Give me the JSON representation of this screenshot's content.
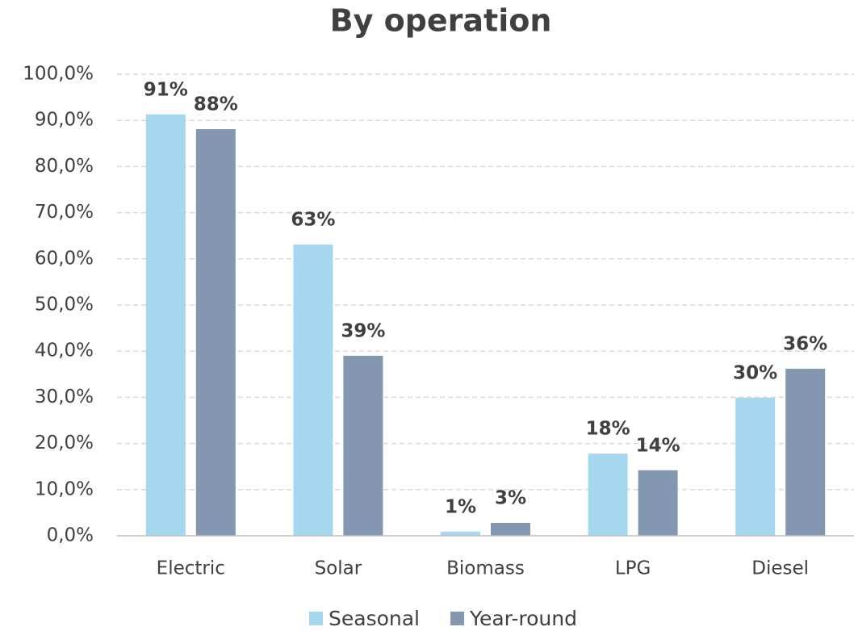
{
  "chart_data": {
    "type": "bar",
    "title": "By operation",
    "categories": [
      "Electric",
      "Solar",
      "Biomass",
      "LPG",
      "Diesel"
    ],
    "series": [
      {
        "name": "Seasonal",
        "color": "#a5d8ee",
        "values": [
          91.3,
          63.1,
          0.9,
          17.8,
          29.9
        ],
        "value_labels": [
          "91%",
          "63%",
          "1%",
          "18%",
          "30%"
        ]
      },
      {
        "name": "Year-round",
        "color": "#8497b0",
        "values": [
          88.1,
          39.0,
          2.8,
          14.2,
          36.2
        ],
        "value_labels": [
          "88%",
          "39%",
          "3%",
          "14%",
          "36%"
        ]
      }
    ],
    "ylim": [
      0,
      100
    ],
    "yticks": [
      {
        "value": 0,
        "label": "0,0%"
      },
      {
        "value": 10,
        "label": "10,0%"
      },
      {
        "value": 20,
        "label": "20,0%"
      },
      {
        "value": 30,
        "label": "30,0%"
      },
      {
        "value": 40,
        "label": "40,0%"
      },
      {
        "value": 50,
        "label": "50,0%"
      },
      {
        "value": 60,
        "label": "60,0%"
      },
      {
        "value": 70,
        "label": "70,0%"
      },
      {
        "value": 80,
        "label": "80,0%"
      },
      {
        "value": 90,
        "label": "90,0%"
      },
      {
        "value": 100,
        "label": "100,0%"
      }
    ],
    "grid": true,
    "legend": "bottom"
  }
}
